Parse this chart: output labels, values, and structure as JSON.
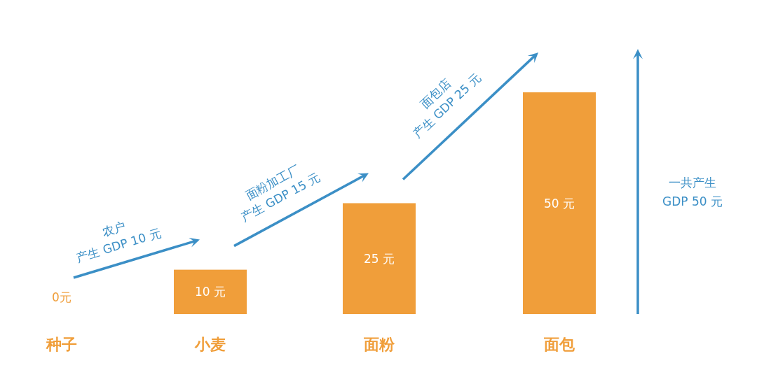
{
  "chart_data": {
    "type": "bar",
    "categories": [
      "种子",
      "小麦",
      "面粉",
      "面包"
    ],
    "values": [
      0,
      10,
      25,
      50
    ],
    "color": "#f09e3a",
    "value_labels": [
      "0元",
      "10 元",
      "25 元",
      "50 元"
    ],
    "annotations": [
      "农户\n产生 GDP 10 元",
      "面粉加工厂\n产生 GDP 15 元",
      "面包店\n产生 GDP 25 元",
      "一共产生\nGDP 50 元"
    ]
  }
}
